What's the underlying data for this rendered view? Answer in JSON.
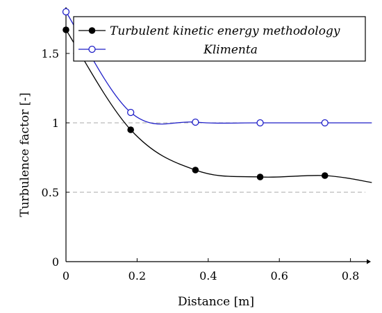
{
  "chart_data": {
    "type": "line",
    "xlabel": "Distance [m]",
    "ylabel": "Turbulence factor [-]",
    "xlim": [
      0,
      0.86
    ],
    "ylim": [
      0,
      1.8
    ],
    "x_ticks": [
      "0",
      "0.2",
      "0.4",
      "0.6",
      "0.8"
    ],
    "y_ticks": [
      "0",
      "0.5",
      "1",
      "1.5"
    ],
    "grid": "horizontal dashed at 0.5, 1, 1.5",
    "legend_position": "top-right",
    "series": [
      {
        "name": "Turbulent kinetic energy methodology",
        "color": "#000000",
        "marker": "filled-circle",
        "x": [
          0,
          0.182,
          0.364,
          0.546,
          0.728
        ],
        "y": [
          1.67,
          0.95,
          0.66,
          0.61,
          0.62
        ],
        "curve_end": [
          0.86,
          0.57
        ]
      },
      {
        "name": "Klimenta",
        "color": "#1f1fc8",
        "marker": "open-circle",
        "x": [
          0,
          0.182,
          0.364,
          0.546,
          0.728
        ],
        "y": [
          1.8,
          1.075,
          1.005,
          1.0,
          1.0
        ],
        "curve_end": [
          0.86,
          1.0
        ]
      }
    ]
  }
}
